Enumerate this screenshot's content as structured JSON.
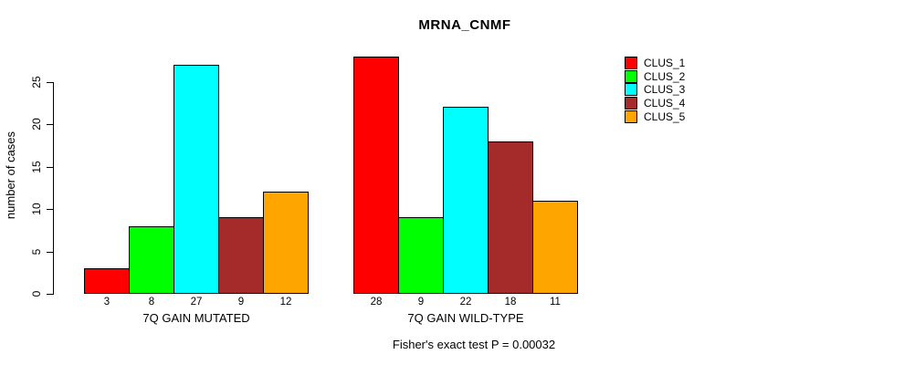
{
  "chart_data": {
    "type": "bar",
    "title": "MRNA_CNMF",
    "ylabel": "number of cases",
    "yticks": [
      0,
      5,
      10,
      15,
      20,
      25
    ],
    "ylim": [
      0,
      28
    ],
    "grid": false,
    "legend_position": "right",
    "categories": [
      "7Q GAIN MUTATED",
      "7Q GAIN WILD-TYPE"
    ],
    "groups": [
      {
        "label": "7Q GAIN MUTATED",
        "values": [
          3,
          8,
          27,
          9,
          12
        ],
        "value_labels": [
          "3",
          "8",
          "27",
          "9",
          "12"
        ]
      },
      {
        "label": "7Q GAIN WILD-TYPE",
        "values": [
          28,
          9,
          22,
          18,
          11
        ],
        "value_labels": [
          "28",
          "9",
          "22",
          "18",
          "11"
        ]
      }
    ],
    "series": [
      {
        "name": "CLUS_1",
        "color": "#FF0000"
      },
      {
        "name": "CLUS_2",
        "color": "#00FF00"
      },
      {
        "name": "CLUS_3",
        "color": "#00FFFF"
      },
      {
        "name": "CLUS_4",
        "color": "#A52A2A"
      },
      {
        "name": "CLUS_5",
        "color": "#FFA500"
      }
    ],
    "annotation": "Fisher's exact test P = 0.00032"
  }
}
